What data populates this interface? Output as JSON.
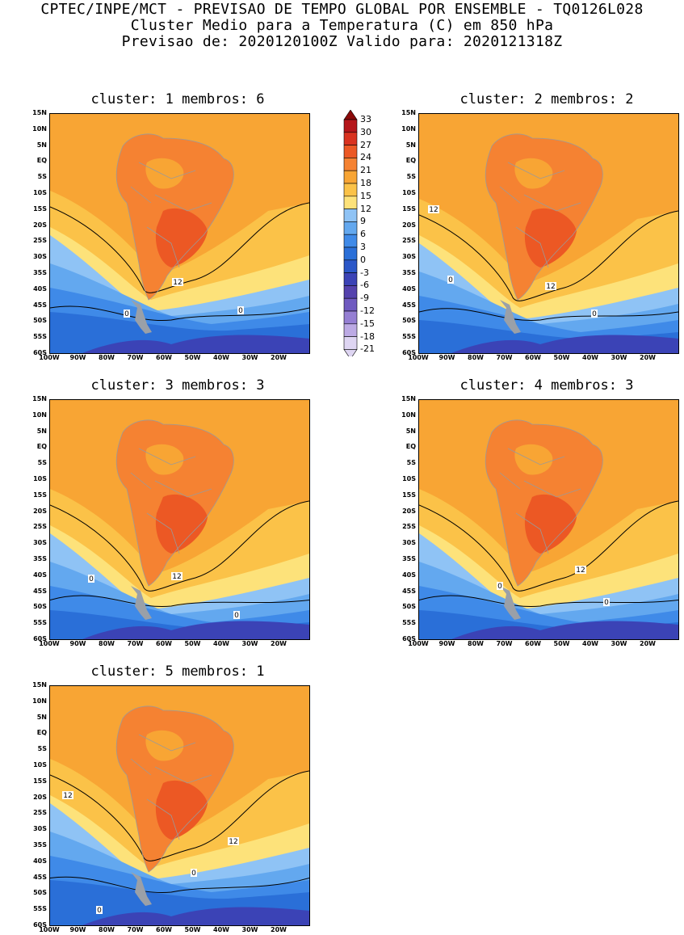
{
  "header": {
    "line1": "CPTEC/INPE/MCT - PREVISAO DE TEMPO GLOBAL POR ENSEMBLE - TQ0126L028",
    "line2": "Cluster Medio para a Temperatura (C) em 850 hPa",
    "line3": "Previsao de: 2020120100Z   Valido para: 2020121318Z"
  },
  "y_ticks": [
    "15N",
    "10N",
    "5N",
    "EQ",
    "5S",
    "10S",
    "15S",
    "20S",
    "25S",
    "30S",
    "35S",
    "40S",
    "45S",
    "50S",
    "55S",
    "60S"
  ],
  "x_ticks": [
    "100W",
    "90W",
    "80W",
    "70W",
    "60W",
    "50W",
    "40W",
    "30W",
    "20W"
  ],
  "colorbar": {
    "labels": [
      "33",
      "30",
      "27",
      "24",
      "21",
      "18",
      "15",
      "12",
      "9",
      "6",
      "3",
      "0",
      "-3",
      "-6",
      "-9",
      "-12",
      "-15",
      "-18",
      "-21"
    ],
    "colors": [
      "#8b0a0a",
      "#b5161a",
      "#d9321f",
      "#ec5824",
      "#f58232",
      "#f8a534",
      "#fbc248",
      "#fde27a",
      "#8fc3f5",
      "#63a8ef",
      "#3f8ae8",
      "#2a6fd8",
      "#2b57c8",
      "#3b43b6",
      "#5442ad",
      "#6f5ac0",
      "#957fd3",
      "#bcaae4",
      "#ded5f2"
    ]
  },
  "panels": [
    {
      "title": "cluster: 1   membros: 6",
      "contour_labels": [
        "12",
        "0",
        "0"
      ]
    },
    {
      "title": "cluster: 2   membros: 2",
      "contour_labels": [
        "12",
        "12",
        "0",
        "0"
      ]
    },
    {
      "title": "cluster: 3   membros: 3",
      "contour_labels": [
        "12",
        "0",
        "0"
      ]
    },
    {
      "title": "cluster: 4   membros: 3",
      "contour_labels": [
        "12",
        "0",
        "0"
      ]
    },
    {
      "title": "cluster: 5   membros: 1",
      "contour_labels": [
        "12",
        "12",
        "0",
        "0"
      ]
    }
  ]
}
